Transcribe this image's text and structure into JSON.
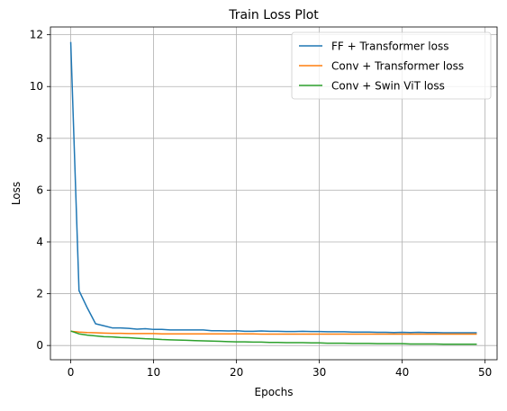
{
  "chart_data": {
    "type": "line",
    "title": "Train Loss Plot",
    "xlabel": "Epochs",
    "ylabel": "Loss",
    "xlim": [
      -2.45,
      51.45
    ],
    "ylim": [
      -0.55,
      12.3
    ],
    "xticks": [
      0,
      10,
      20,
      30,
      40,
      50
    ],
    "yticks": [
      0,
      2,
      4,
      6,
      8,
      10,
      12
    ],
    "grid": true,
    "legend_position": "top-right",
    "x": [
      0,
      1,
      2,
      3,
      4,
      5,
      6,
      7,
      8,
      9,
      10,
      11,
      12,
      13,
      14,
      15,
      16,
      17,
      18,
      19,
      20,
      21,
      22,
      23,
      24,
      25,
      26,
      27,
      28,
      29,
      30,
      31,
      32,
      33,
      34,
      35,
      36,
      37,
      38,
      39,
      40,
      41,
      42,
      43,
      44,
      45,
      46,
      47,
      48,
      49
    ],
    "series": [
      {
        "name": "FF + Transformer loss",
        "color": "#1f77b4",
        "values": [
          11.72,
          2.12,
          1.45,
          0.84,
          0.76,
          0.68,
          0.68,
          0.66,
          0.63,
          0.65,
          0.62,
          0.62,
          0.6,
          0.6,
          0.6,
          0.6,
          0.6,
          0.57,
          0.57,
          0.56,
          0.57,
          0.55,
          0.55,
          0.56,
          0.55,
          0.55,
          0.54,
          0.54,
          0.55,
          0.54,
          0.54,
          0.53,
          0.53,
          0.53,
          0.52,
          0.52,
          0.52,
          0.51,
          0.51,
          0.5,
          0.51,
          0.5,
          0.51,
          0.5,
          0.5,
          0.49,
          0.49,
          0.49,
          0.49,
          0.49
        ]
      },
      {
        "name": "Conv + Transformer loss",
        "color": "#ff7f0e",
        "values": [
          0.55,
          0.52,
          0.5,
          0.49,
          0.48,
          0.47,
          0.47,
          0.46,
          0.46,
          0.46,
          0.46,
          0.45,
          0.45,
          0.45,
          0.45,
          0.45,
          0.45,
          0.45,
          0.45,
          0.45,
          0.45,
          0.45,
          0.45,
          0.44,
          0.44,
          0.44,
          0.44,
          0.44,
          0.44,
          0.44,
          0.44,
          0.44,
          0.44,
          0.44,
          0.44,
          0.44,
          0.44,
          0.44,
          0.44,
          0.44,
          0.44,
          0.44,
          0.44,
          0.44,
          0.44,
          0.44,
          0.44,
          0.44,
          0.44,
          0.44
        ]
      },
      {
        "name": "Conv + Swin ViT loss",
        "color": "#2ca02c",
        "values": [
          0.56,
          0.45,
          0.4,
          0.37,
          0.34,
          0.33,
          0.31,
          0.3,
          0.28,
          0.26,
          0.25,
          0.23,
          0.22,
          0.21,
          0.2,
          0.19,
          0.18,
          0.17,
          0.16,
          0.15,
          0.14,
          0.14,
          0.13,
          0.13,
          0.12,
          0.12,
          0.11,
          0.11,
          0.11,
          0.1,
          0.1,
          0.09,
          0.09,
          0.09,
          0.08,
          0.08,
          0.08,
          0.07,
          0.07,
          0.07,
          0.07,
          0.06,
          0.06,
          0.06,
          0.06,
          0.05,
          0.05,
          0.05,
          0.05,
          0.05
        ]
      }
    ]
  }
}
